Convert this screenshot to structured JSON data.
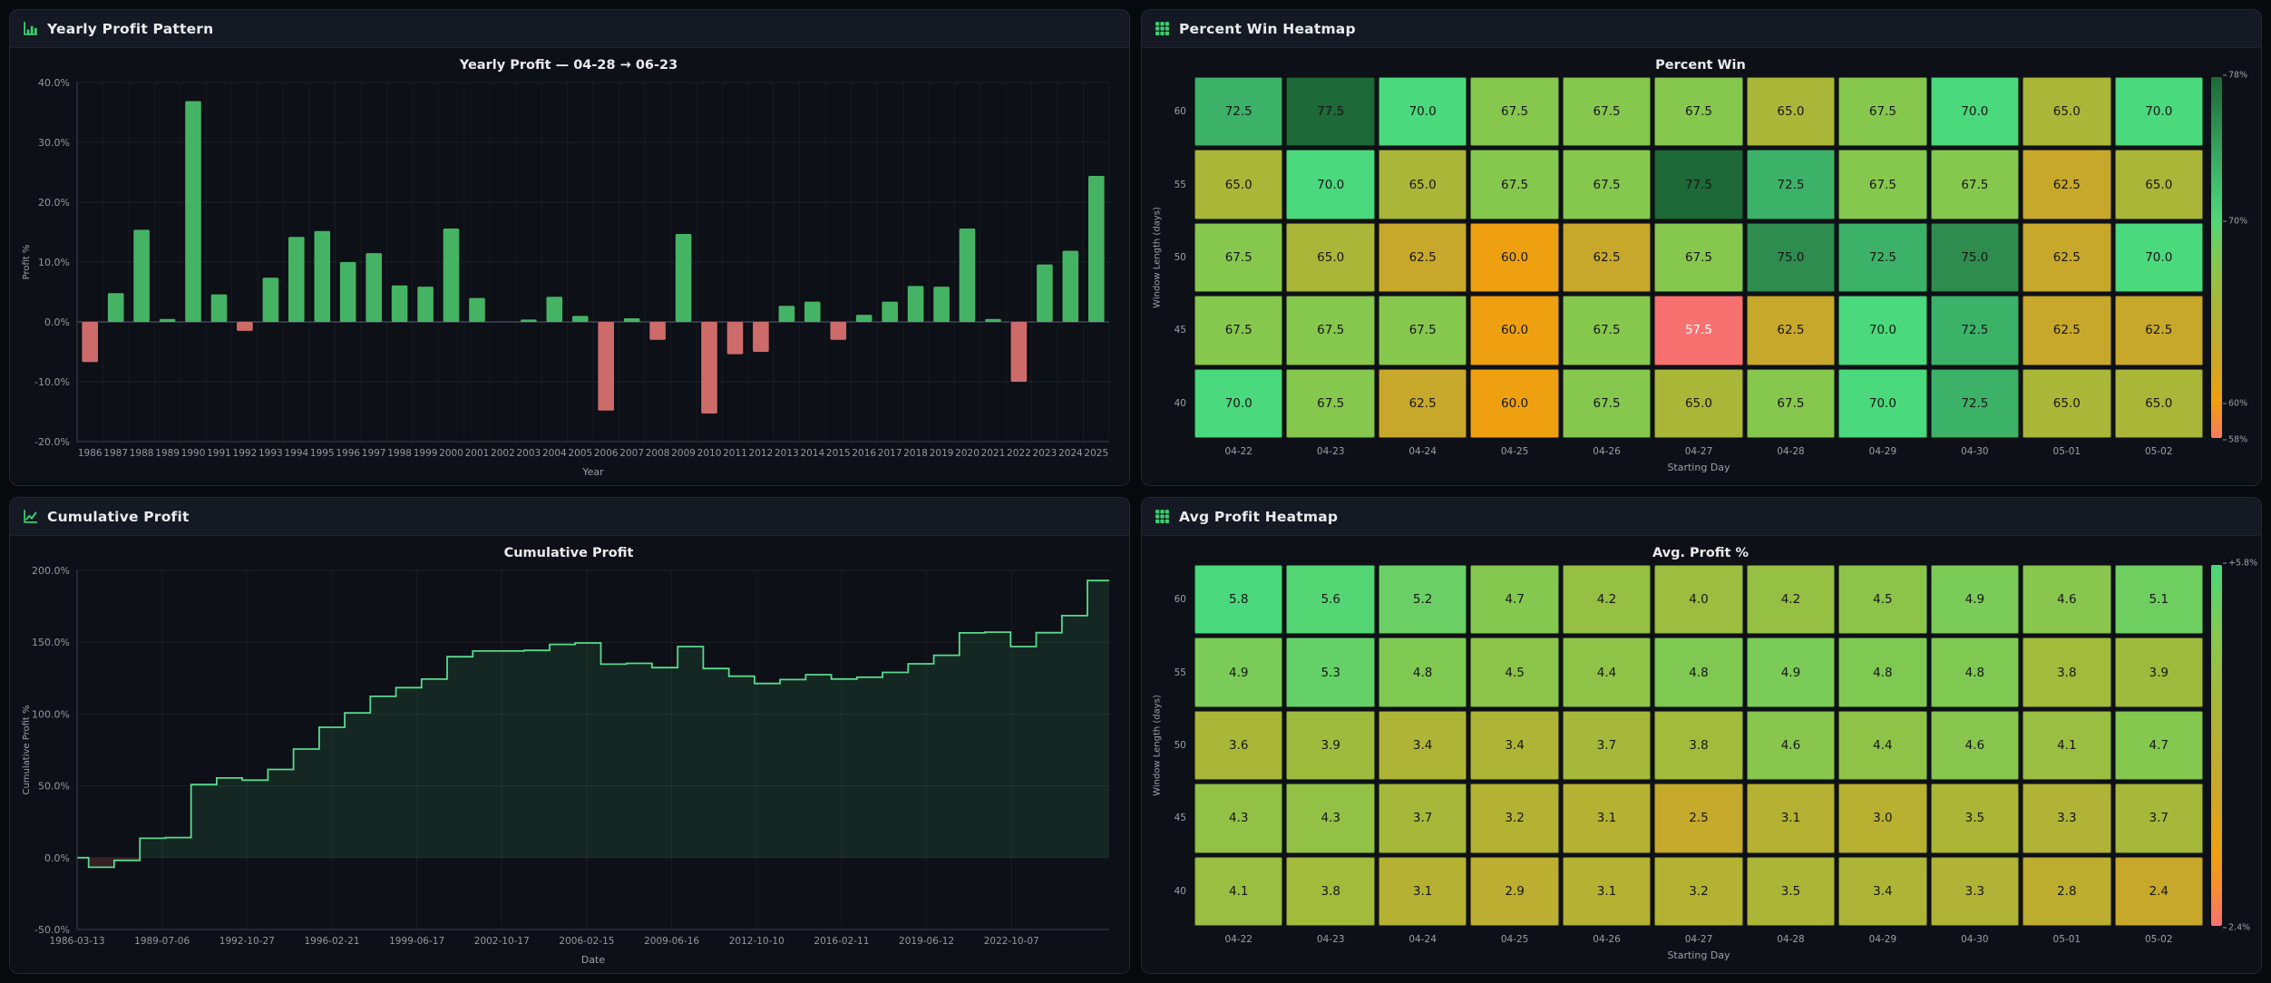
{
  "panels": {
    "yearly": {
      "header": "Yearly Profit Pattern"
    },
    "percent_win": {
      "header": "Percent Win Heatmap"
    },
    "cumulative": {
      "header": "Cumulative Profit"
    },
    "avg_profit": {
      "header": "Avg Profit Heatmap"
    }
  },
  "colors": {
    "accent_green": "#3ed06e",
    "bar_positive": "#45b364",
    "bar_negative": "#cd6b6b",
    "line_green": "#5ad98c",
    "tick_text": "#9298a5",
    "axis_title_text": "#99a0ad",
    "title_text": "#e9ebee"
  },
  "chart_data": [
    {
      "id": "yearly-profit",
      "type": "bar",
      "title": "Yearly Profit — 04-28 → 06-23",
      "xlabel": "Year",
      "ylabel": "Profit %",
      "ylim": [
        -20,
        40
      ],
      "ytick_step": 10,
      "grid": true,
      "categories": [
        "1986",
        "1987",
        "1988",
        "1989",
        "1990",
        "1991",
        "1992",
        "1993",
        "1994",
        "1995",
        "1996",
        "1997",
        "1998",
        "1999",
        "2000",
        "2001",
        "2002",
        "2003",
        "2004",
        "2005",
        "2006",
        "2007",
        "2008",
        "2009",
        "2010",
        "2011",
        "2012",
        "2013",
        "2014",
        "2015",
        "2016",
        "2017",
        "2018",
        "2019",
        "2020",
        "2021",
        "2022",
        "2023",
        "2024",
        "2025"
      ],
      "values": [
        -6.7,
        4.8,
        15.4,
        0.5,
        36.9,
        4.6,
        -1.5,
        7.4,
        14.2,
        15.2,
        10.0,
        11.5,
        6.1,
        5.9,
        15.6,
        4.0,
        0.0,
        0.4,
        4.2,
        1.0,
        -14.8,
        0.6,
        -3.0,
        14.7,
        -15.3,
        -5.4,
        -5.0,
        2.7,
        3.4,
        -3.0,
        1.2,
        3.4,
        6.0,
        5.9,
        15.6,
        0.5,
        -10.0,
        9.6,
        11.9,
        24.4
      ]
    },
    {
      "id": "percent-win",
      "type": "heatmap",
      "title": "Percent Win",
      "xlabel": "Starting Day",
      "ylabel": "Window Length (days)",
      "rows": [
        "60",
        "55",
        "50",
        "45",
        "40"
      ],
      "columns": [
        "04-22",
        "04-23",
        "04-24",
        "04-25",
        "04-26",
        "04-27",
        "04-28",
        "04-29",
        "04-30",
        "05-01",
        "05-02"
      ],
      "values": [
        [
          72.5,
          77.5,
          70.0,
          67.5,
          67.5,
          67.5,
          65.0,
          67.5,
          70.0,
          65.0,
          70.0
        ],
        [
          65.0,
          70.0,
          65.0,
          67.5,
          67.5,
          77.5,
          72.5,
          67.5,
          67.5,
          62.5,
          65.0
        ],
        [
          67.5,
          65.0,
          62.5,
          60.0,
          62.5,
          67.5,
          75.0,
          72.5,
          75.0,
          62.5,
          70.0
        ],
        [
          67.5,
          67.5,
          67.5,
          60.0,
          67.5,
          57.5,
          62.5,
          70.0,
          72.5,
          62.5,
          62.5
        ],
        [
          70.0,
          67.5,
          62.5,
          60.0,
          67.5,
          65.0,
          67.5,
          70.0,
          72.5,
          65.0,
          65.0
        ]
      ],
      "cell_domain": [
        57.5,
        77.5
      ],
      "cell_trange": [
        0,
        1
      ],
      "bar_trange": [
        0.02,
        1
      ],
      "colorbar_ticks": [
        {
          "label": "78%",
          "pos": 0.0
        },
        {
          "label": "70%",
          "pos": 0.4
        },
        {
          "label": "60%",
          "pos": 0.9
        },
        {
          "label": "58%",
          "pos": 1.0
        }
      ]
    },
    {
      "id": "cumulative-profit",
      "type": "area_step",
      "title": "Cumulative Profit",
      "xlabel": "Date",
      "ylabel": "Cumulative Profit %",
      "ylim": [
        -50,
        200
      ],
      "ytick_step": 50,
      "grid": true,
      "start_value": 0,
      "x_tick_labels": [
        "1986-03-13",
        "1989-07-06",
        "1992-10-27",
        "1996-02-21",
        "1999-06-17",
        "2002-10-17",
        "2006-02-15",
        "2009-06-16",
        "2012-10-10",
        "2016-02-11",
        "2019-06-12",
        "2022-10-07"
      ],
      "x_tick_frac": 0.0823,
      "values": [
        -6.7,
        -1.9,
        13.5,
        14.0,
        50.9,
        55.5,
        54.0,
        61.4,
        75.6,
        90.8,
        100.8,
        112.3,
        118.4,
        124.3,
        139.9,
        143.9,
        143.9,
        144.3,
        148.5,
        149.5,
        134.7,
        135.3,
        132.3,
        147.0,
        131.7,
        126.3,
        121.3,
        124.0,
        127.4,
        124.4,
        125.6,
        129.0,
        135.0,
        140.9,
        156.5,
        157.0,
        147.0,
        156.6,
        168.5,
        192.9
      ]
    },
    {
      "id": "avg-profit",
      "type": "heatmap",
      "title": "Avg. Profit %",
      "xlabel": "Starting Day",
      "ylabel": "Window Length (days)",
      "rows": [
        "60",
        "55",
        "50",
        "45",
        "40"
      ],
      "columns": [
        "04-22",
        "04-23",
        "04-24",
        "04-25",
        "04-26",
        "04-27",
        "04-28",
        "04-29",
        "04-30",
        "05-01",
        "05-02"
      ],
      "values": [
        [
          5.8,
          5.6,
          5.2,
          4.7,
          4.2,
          4.0,
          4.2,
          4.5,
          4.9,
          4.6,
          5.1
        ],
        [
          4.9,
          5.3,
          4.8,
          4.5,
          4.4,
          4.8,
          4.9,
          4.8,
          4.8,
          3.8,
          3.9
        ],
        [
          3.6,
          3.9,
          3.4,
          3.4,
          3.7,
          3.8,
          4.6,
          4.4,
          4.6,
          4.1,
          4.7
        ],
        [
          4.3,
          4.3,
          3.7,
          3.2,
          3.1,
          2.5,
          3.1,
          3.0,
          3.5,
          3.3,
          3.7
        ],
        [
          4.1,
          3.8,
          3.1,
          2.9,
          3.1,
          3.2,
          3.5,
          3.4,
          3.3,
          2.8,
          2.4
        ]
      ],
      "cell_domain": [
        2.4,
        5.8
      ],
      "cell_trange": [
        0.25,
        0.625
      ],
      "bar_trange": [
        0,
        0.625
      ],
      "colorbar_ticks": [
        {
          "label": "+5.8%",
          "pos": 0.0
        },
        {
          "label": "2.4%",
          "pos": 1.0
        }
      ]
    }
  ]
}
